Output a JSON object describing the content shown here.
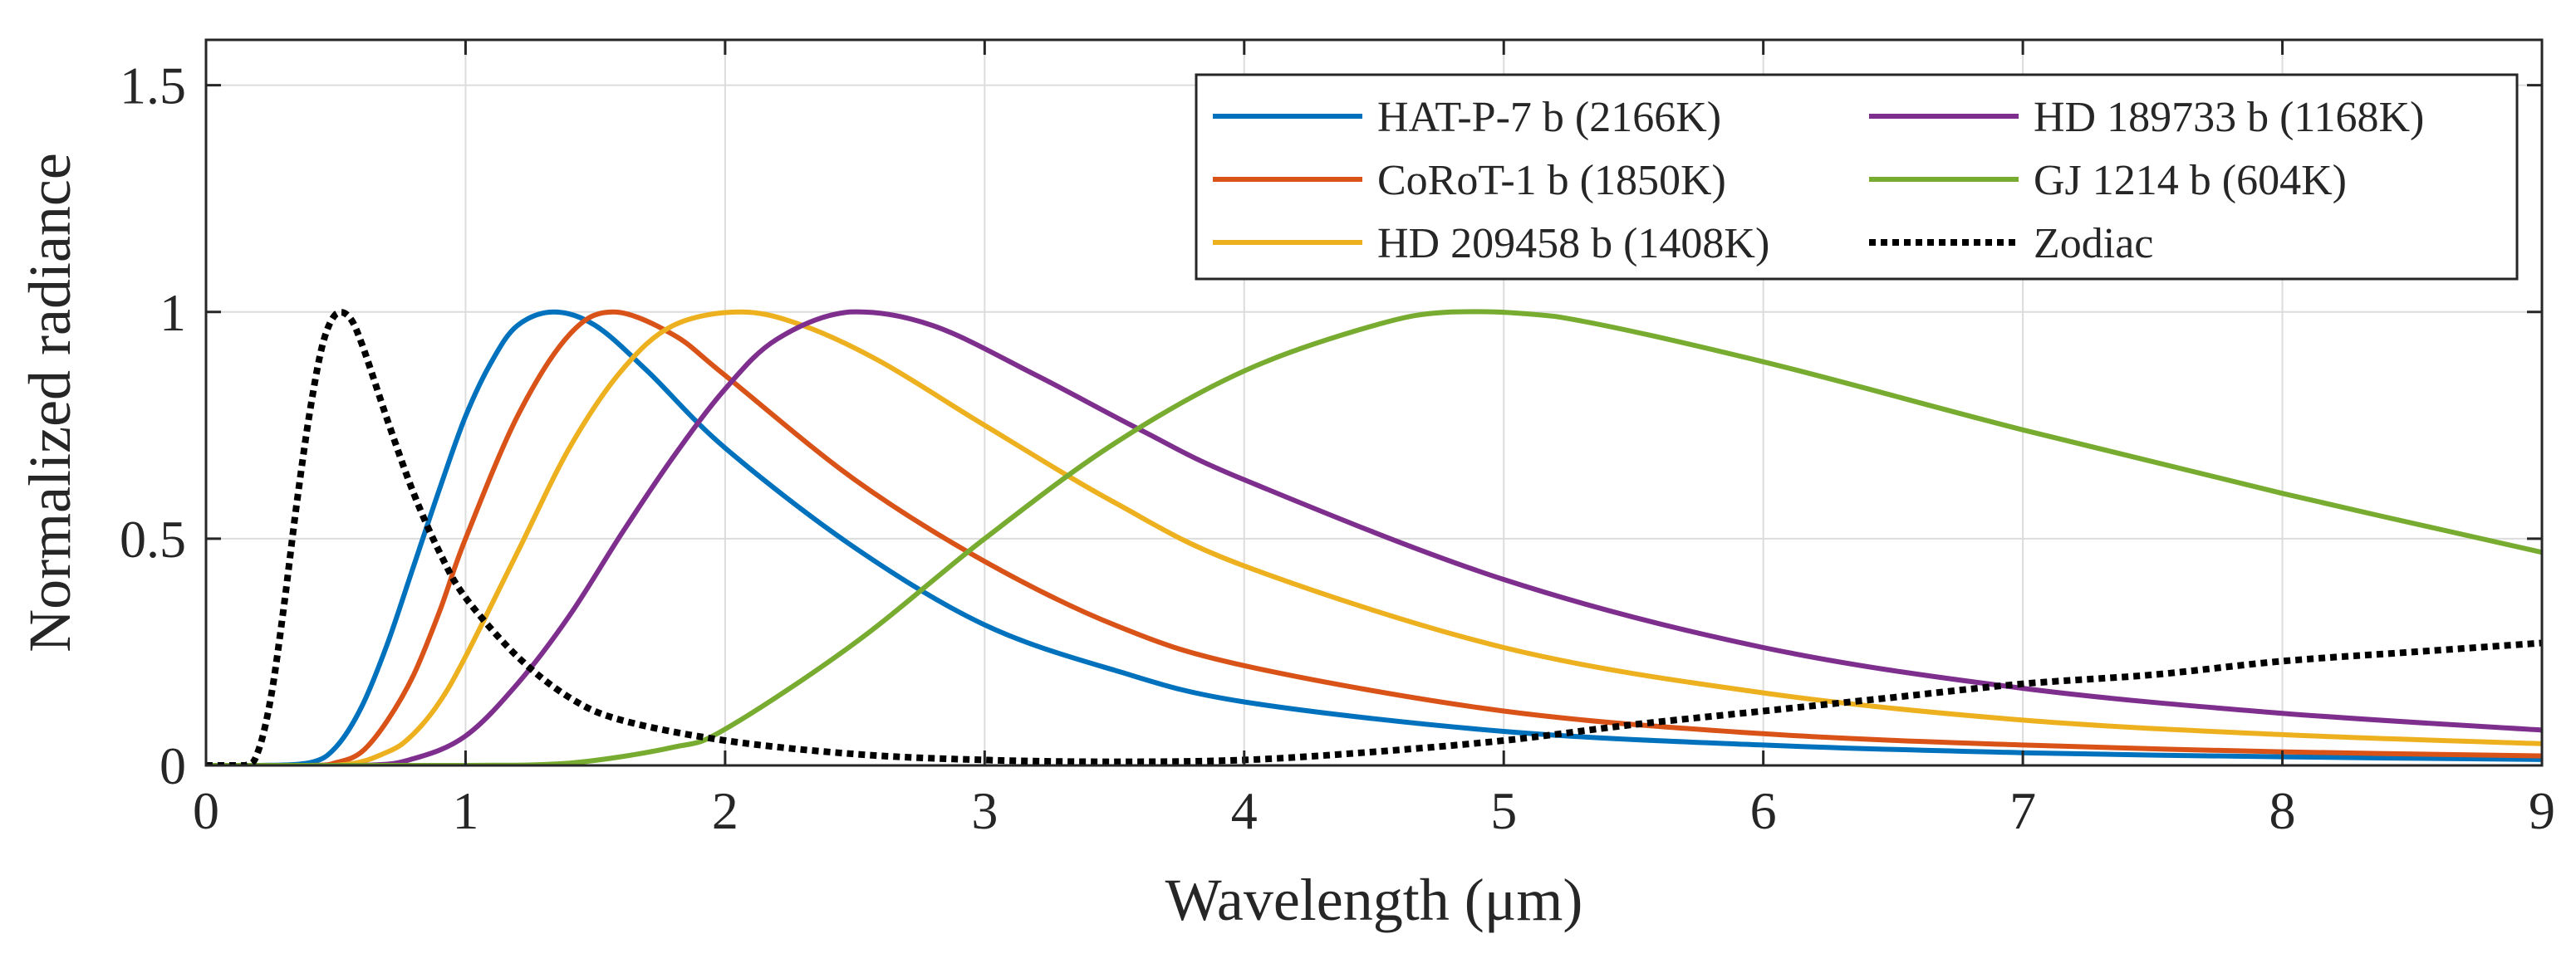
{
  "chart_data": {
    "type": "line",
    "title": "",
    "xlabel": "Wavelength (μm)",
    "ylabel": "Normalized radiance",
    "xlim": [
      0,
      9
    ],
    "ylim": [
      0,
      1.6
    ],
    "grid": true,
    "legend_position": "top-right",
    "x_ticks": [
      0,
      1,
      2,
      3,
      4,
      5,
      6,
      7,
      8,
      9
    ],
    "x_tick_labels": [
      "0",
      "1",
      "2",
      "3",
      "4",
      "5",
      "6",
      "7",
      "8",
      "9"
    ],
    "y_ticks": [
      0,
      0.5,
      1,
      1.5
    ],
    "y_tick_labels": [
      "0",
      "0.5",
      "1",
      "1.5"
    ],
    "series": [
      {
        "name": "HAT-P-7 b (2166K)",
        "color": "#0072BD",
        "style": "solid",
        "x": [
          0,
          0.2,
          0.4,
          0.5,
          0.6,
          0.7,
          0.8,
          0.9,
          1.0,
          1.1,
          1.2,
          1.34,
          1.5,
          1.7,
          2.0,
          2.5,
          3.0,
          3.5,
          4.0,
          5.0,
          6.0,
          7.0,
          8.0,
          9.0
        ],
        "values": [
          0,
          0.0,
          0.006,
          0.04,
          0.13,
          0.27,
          0.44,
          0.61,
          0.77,
          0.89,
          0.97,
          1.0,
          0.97,
          0.87,
          0.7,
          0.48,
          0.31,
          0.21,
          0.14,
          0.075,
          0.045,
          0.028,
          0.019,
          0.013
        ]
      },
      {
        "name": "CoRoT-1 b (1850K)",
        "color": "#D95319",
        "style": "solid",
        "x": [
          0,
          0.4,
          0.5,
          0.6,
          0.7,
          0.8,
          0.9,
          1.0,
          1.2,
          1.4,
          1.57,
          1.8,
          2.0,
          2.5,
          3.0,
          3.5,
          4.0,
          5.0,
          6.0,
          7.0,
          8.0,
          9.0
        ],
        "values": [
          0,
          0.0,
          0.006,
          0.03,
          0.1,
          0.2,
          0.34,
          0.5,
          0.77,
          0.95,
          1.0,
          0.95,
          0.86,
          0.63,
          0.45,
          0.31,
          0.22,
          0.12,
          0.07,
          0.045,
          0.03,
          0.021
        ]
      },
      {
        "name": "HD 209458 b (1408K)",
        "color": "#EDB120",
        "style": "solid",
        "x": [
          0,
          0.5,
          0.7,
          0.8,
          0.9,
          1.0,
          1.2,
          1.4,
          1.6,
          1.8,
          2.06,
          2.3,
          2.6,
          3.0,
          3.5,
          4.0,
          5.0,
          6.0,
          7.0,
          8.0,
          9.0
        ],
        "values": [
          0,
          0.0,
          0.03,
          0.07,
          0.14,
          0.24,
          0.47,
          0.7,
          0.87,
          0.97,
          1.0,
          0.97,
          0.89,
          0.75,
          0.58,
          0.44,
          0.26,
          0.16,
          0.1,
          0.068,
          0.048
        ]
      },
      {
        "name": "HD 189733 b (1168K)",
        "color": "#7E2F8E",
        "style": "solid",
        "x": [
          0,
          0.6,
          0.8,
          1.0,
          1.2,
          1.4,
          1.6,
          1.8,
          2.0,
          2.2,
          2.48,
          2.8,
          3.2,
          3.6,
          4.0,
          5.0,
          6.0,
          7.0,
          8.0,
          9.0
        ],
        "values": [
          0,
          0.0,
          0.015,
          0.065,
          0.18,
          0.33,
          0.51,
          0.68,
          0.83,
          0.94,
          1.0,
          0.97,
          0.86,
          0.74,
          0.63,
          0.41,
          0.26,
          0.17,
          0.115,
          0.078
        ]
      },
      {
        "name": "GJ 1214 b (604K)",
        "color": "#77AC30",
        "style": "solid",
        "x": [
          0,
          1.0,
          1.4,
          1.8,
          2.0,
          2.5,
          3.0,
          3.5,
          4.0,
          4.5,
          4.8,
          5.2,
          6.0,
          7.0,
          8.0,
          9.0
        ],
        "values": [
          0,
          0.0,
          0.005,
          0.04,
          0.08,
          0.27,
          0.5,
          0.71,
          0.87,
          0.97,
          1.0,
          0.99,
          0.89,
          0.74,
          0.6,
          0.47
        ]
      },
      {
        "name": "Zodiac",
        "color": "#000000",
        "style": "dotted",
        "x": [
          0,
          0.15,
          0.2,
          0.25,
          0.3,
          0.35,
          0.4,
          0.45,
          0.5,
          0.55,
          0.6,
          0.7,
          0.8,
          0.9,
          1.0,
          1.2,
          1.4,
          1.6,
          2.0,
          2.5,
          3.0,
          3.5,
          4.0,
          4.5,
          5.0,
          5.5,
          6.0,
          6.5,
          7.0,
          7.5,
          8.0,
          8.5,
          9.0
        ],
        "values": [
          0,
          0.0,
          0.03,
          0.15,
          0.35,
          0.58,
          0.78,
          0.93,
          0.995,
          0.99,
          0.93,
          0.76,
          0.6,
          0.47,
          0.37,
          0.24,
          0.15,
          0.1,
          0.055,
          0.025,
          0.012,
          0.008,
          0.012,
          0.03,
          0.055,
          0.09,
          0.12,
          0.15,
          0.18,
          0.2,
          0.23,
          0.25,
          0.27
        ]
      }
    ]
  }
}
